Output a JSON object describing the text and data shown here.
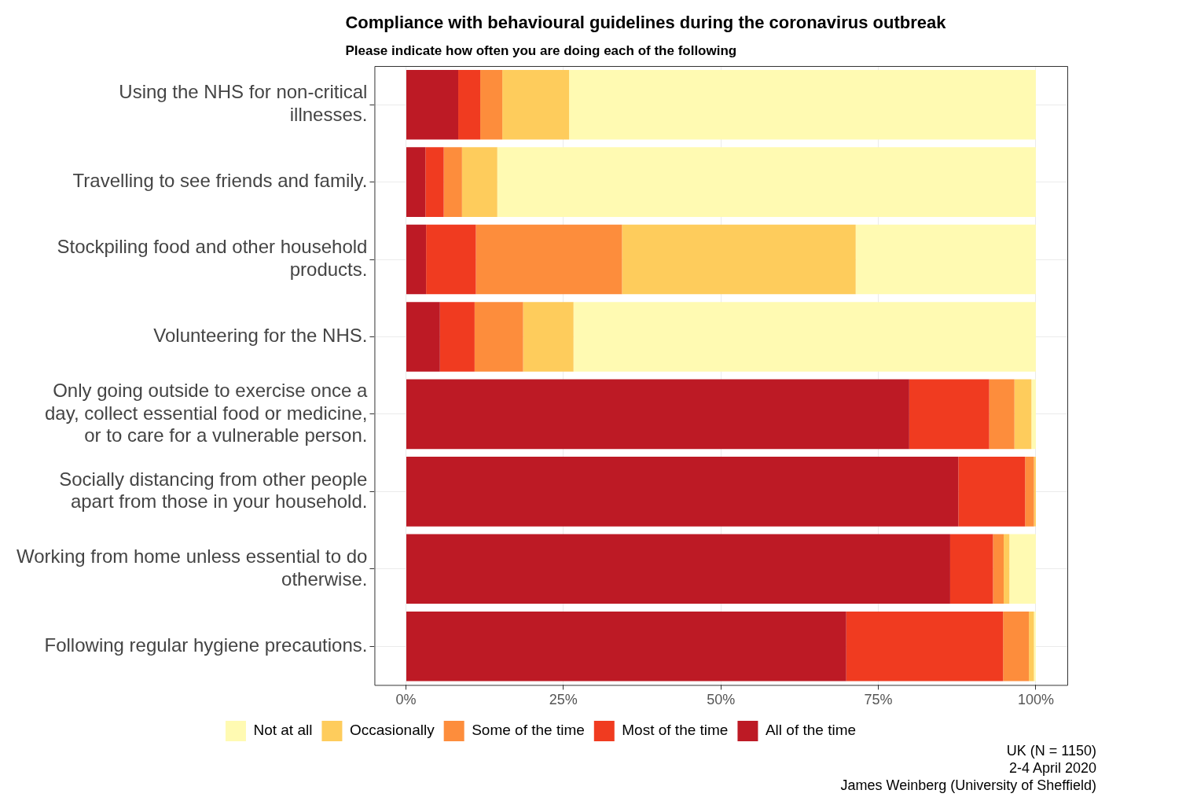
{
  "chart_data": {
    "type": "bar",
    "orientation": "horizontal",
    "stacked": true,
    "title": "Compliance with behavioural guidelines during the coronavirus outbreak",
    "subtitle": "Please indicate how often you are doing each of the following",
    "categories": [
      "Using the NHS for non-critical illnesses.",
      "Travelling to see friends and family.",
      "Stockpiling food and other household products.",
      "Volunteering for the NHS.",
      "Only going outside to exercise once a day, collect essential food or medicine, or to care for a vulnerable person.",
      "Socially distancing from other people apart from those in your household.",
      "Working from home unless essential to do otherwise.",
      "Following regular hygiene precautions."
    ],
    "series": [
      {
        "name": "All of the time",
        "color": "#bd1a25",
        "values": [
          8.3,
          3.1,
          3.2,
          5.4,
          79.9,
          87.7,
          86.4,
          69.9
        ]
      },
      {
        "name": "Most of the time",
        "color": "#f03b20",
        "values": [
          3.5,
          2.9,
          7.9,
          5.5,
          12.7,
          10.6,
          6.8,
          24.9
        ]
      },
      {
        "name": "Some of the time",
        "color": "#fd8d3c",
        "values": [
          3.5,
          2.9,
          23.2,
          7.7,
          4.0,
          1.4,
          1.7,
          4.1
        ]
      },
      {
        "name": "Occasionally",
        "color": "#fecc5c",
        "values": [
          10.6,
          5.6,
          37.1,
          8.0,
          2.7,
          0.3,
          0.9,
          0.8
        ]
      },
      {
        "name": "Not at all",
        "color": "#fffab2",
        "values": [
          74.1,
          85.5,
          28.6,
          73.4,
          0.7,
          0,
          4.2,
          0.3
        ]
      }
    ],
    "xlim": [
      -5,
      105
    ],
    "xticks": [
      {
        "value": 0,
        "label": "0%"
      },
      {
        "value": 25,
        "label": "25%"
      },
      {
        "value": 50,
        "label": "50%"
      },
      {
        "value": 75,
        "label": "75%"
      },
      {
        "value": 100,
        "label": "100%"
      }
    ],
    "grid": true,
    "legend": "bottom",
    "annotations": [
      "UK (N = 1150)",
      "2-4 April 2020",
      "James Weinberg (University of Sheffield)"
    ]
  }
}
